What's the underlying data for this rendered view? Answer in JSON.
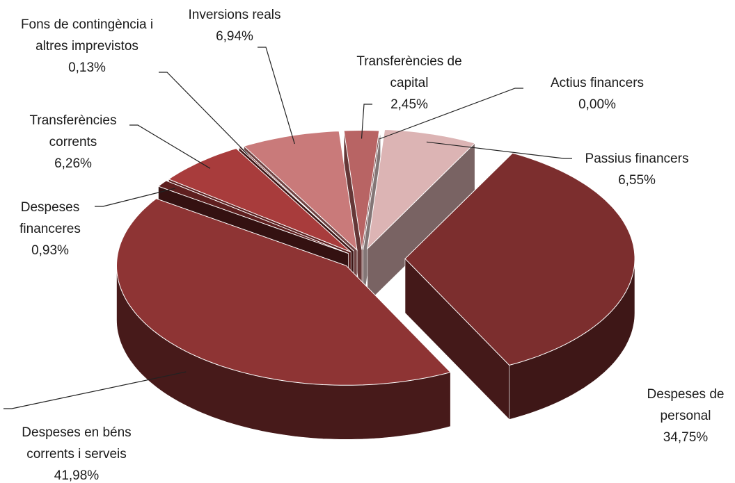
{
  "chart_data": {
    "type": "pie",
    "categories": [
      "Passius financers",
      "Despeses de personal",
      "Despeses en béns corrents i serveis",
      "Despeses financeres",
      "Transferències corrents",
      "Fons de contingència i altres imprevistos",
      "Inversions reals",
      "Transferències de capital",
      "Actius financers"
    ],
    "values": [
      6.55,
      34.75,
      41.98,
      0.93,
      6.26,
      0.13,
      6.94,
      2.45,
      0.0
    ],
    "value_labels": [
      "6,55%",
      "34,75%",
      "41,98%",
      "0,93%",
      "6,26%",
      "0,13%",
      "6,94%",
      "2,45%",
      "0,00%"
    ],
    "colors": [
      "#dcb4b4",
      "#7c2e2e",
      "#8e3434",
      "#5e1f1f",
      "#a83c3c",
      "#6e2828",
      "#c97a7a",
      "#b86464",
      "#eed6d6"
    ]
  }
}
